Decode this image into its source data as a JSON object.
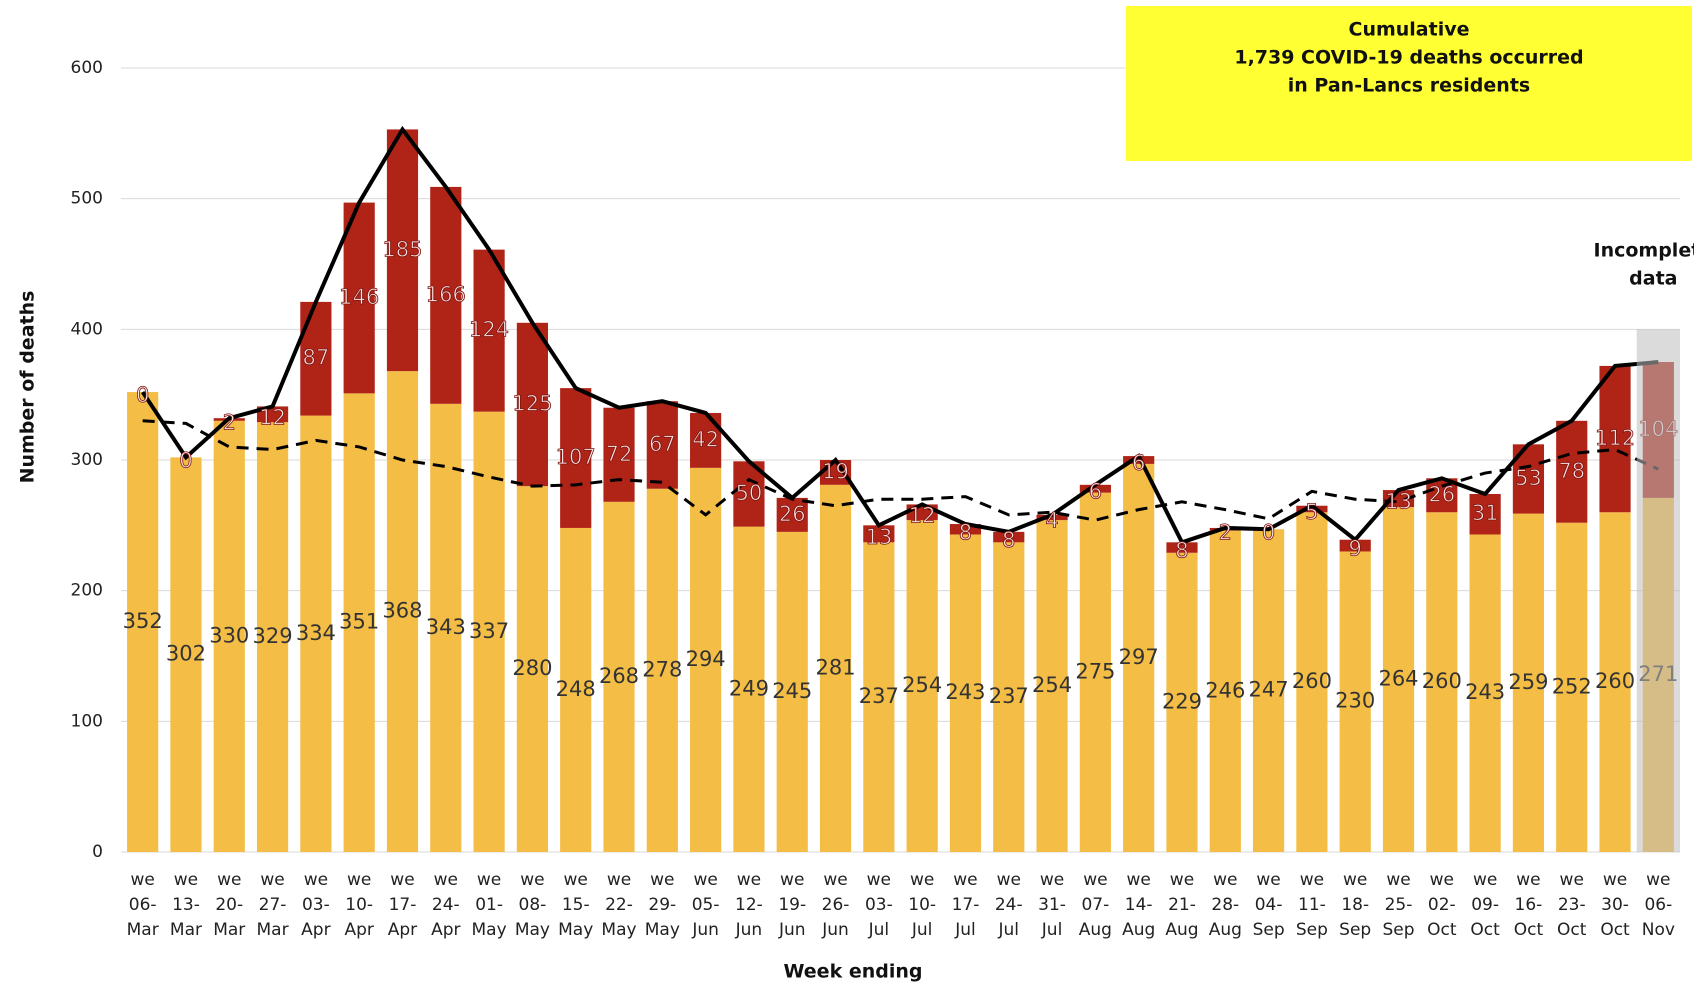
{
  "chart_data": {
    "type": "stacked-bar-line",
    "y_axis_label": "Number of deaths",
    "x_axis_label": "Week ending",
    "annotation": [
      "Cumulative",
      "1,739 COVID-19 deaths occurred",
      "in Pan-Lancs residents"
    ],
    "incomplete_note": [
      "Incomplete",
      "data"
    ],
    "categories": [
      [
        "we",
        "06-",
        "Mar"
      ],
      [
        "we",
        "13-",
        "Mar"
      ],
      [
        "we",
        "20-",
        "Mar"
      ],
      [
        "we",
        "27-",
        "Mar"
      ],
      [
        "we",
        "03-",
        "Apr"
      ],
      [
        "we",
        "10-",
        "Apr"
      ],
      [
        "we",
        "17-",
        "Apr"
      ],
      [
        "we",
        "24-",
        "Apr"
      ],
      [
        "we",
        "01-",
        "May"
      ],
      [
        "we",
        "08-",
        "May"
      ],
      [
        "we",
        "15-",
        "May"
      ],
      [
        "we",
        "22-",
        "May"
      ],
      [
        "we",
        "29-",
        "May"
      ],
      [
        "we",
        "05-",
        "Jun"
      ],
      [
        "we",
        "12-",
        "Jun"
      ],
      [
        "we",
        "19-",
        "Jun"
      ],
      [
        "we",
        "26-",
        "Jun"
      ],
      [
        "we",
        "03-",
        "Jul"
      ],
      [
        "we",
        "10-",
        "Jul"
      ],
      [
        "we",
        "17-",
        "Jul"
      ],
      [
        "we",
        "24-",
        "Jul"
      ],
      [
        "we",
        "31-",
        "Jul"
      ],
      [
        "we",
        "07-",
        "Aug"
      ],
      [
        "we",
        "14-",
        "Aug"
      ],
      [
        "we",
        "21-",
        "Aug"
      ],
      [
        "we",
        "28-",
        "Aug"
      ],
      [
        "we",
        "04-",
        "Sep"
      ],
      [
        "we",
        "11-",
        "Sep"
      ],
      [
        "we",
        "18-",
        "Sep"
      ],
      [
        "we",
        "25-",
        "Sep"
      ],
      [
        "we",
        "02-",
        "Oct"
      ],
      [
        "we",
        "09-",
        "Oct"
      ],
      [
        "we",
        "16-",
        "Oct"
      ],
      [
        "we",
        "23-",
        "Oct"
      ],
      [
        "we",
        "30-",
        "Oct"
      ],
      [
        "we",
        "06-",
        "Nov"
      ]
    ],
    "series": [
      {
        "kind": "bar",
        "color": "#f4bd45",
        "label_color": "#333333",
        "values": [
          352,
          302,
          330,
          329,
          334,
          351,
          368,
          343,
          337,
          280,
          248,
          268,
          278,
          294,
          249,
          245,
          281,
          237,
          254,
          243,
          237,
          254,
          275,
          297,
          229,
          246,
          247,
          260,
          230,
          264,
          260,
          243,
          259,
          252,
          260,
          271
        ]
      },
      {
        "kind": "bar",
        "color": "#b02418",
        "label_color": "#fbe3e3",
        "values": [
          0,
          0,
          2,
          12,
          87,
          146,
          185,
          166,
          124,
          125,
          107,
          72,
          67,
          42,
          50,
          26,
          19,
          13,
          12,
          8,
          8,
          4,
          6,
          6,
          8,
          2,
          0,
          5,
          9,
          13,
          26,
          31,
          53,
          78,
          112,
          104
        ]
      },
      {
        "kind": "line",
        "color": "#000000",
        "dash": false,
        "values": [
          352,
          302,
          332,
          341,
          421,
          497,
          553,
          509,
          461,
          405,
          355,
          340,
          345,
          336,
          299,
          271,
          300,
          250,
          266,
          251,
          245,
          258,
          281,
          303,
          237,
          248,
          247,
          265,
          239,
          277,
          286,
          274,
          312,
          330,
          372,
          375
        ]
      },
      {
        "kind": "line",
        "color": "#000000",
        "dash": true,
        "values": [
          330,
          328,
          310,
          308,
          315,
          310,
          300,
          295,
          287,
          280,
          281,
          285,
          283,
          258,
          285,
          270,
          265,
          270,
          270,
          272,
          258,
          260,
          254,
          262,
          268,
          262,
          255,
          276,
          270,
          268,
          280,
          290,
          295,
          305,
          308,
          293
        ]
      }
    ],
    "ylim": [
      0,
      600
    ],
    "yticks": [
      0,
      100,
      200,
      300,
      400,
      500,
      600
    ],
    "grid": true,
    "annotation_color": "#ffff33",
    "incomplete_shade": "#bdbdbd"
  }
}
